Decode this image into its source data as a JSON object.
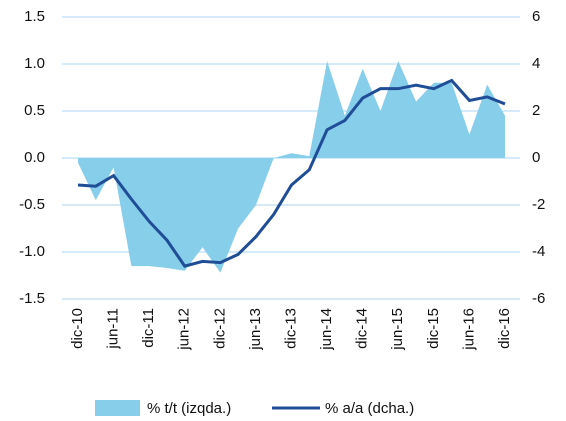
{
  "chart_data": {
    "type": "area-line",
    "categories": [
      "dic-10",
      null,
      "jun-11",
      null,
      "dic-11",
      null,
      "jun-12",
      null,
      "dic-12",
      null,
      "jun-13",
      null,
      "dic-13",
      null,
      "jun-14",
      null,
      "dic-14",
      null,
      "jun-15",
      null,
      "dic-15",
      null,
      "jun-16",
      null,
      "dic-16"
    ],
    "series": [
      {
        "name": "% t/t (izqda.)",
        "color": "#87ceeb",
        "axis": "y",
        "values": [
          -0.05,
          -0.45,
          -0.1,
          -1.15,
          -1.15,
          -1.17,
          -1.2,
          -0.95,
          -1.22,
          -0.75,
          -0.5,
          0.0,
          0.05,
          0.02,
          1.03,
          0.45,
          0.95,
          0.5,
          1.03,
          0.6,
          0.8,
          0.8,
          0.25,
          0.78,
          0.45
        ]
      },
      {
        "name": "% a/a (dcha.)",
        "color": "#1f4e96",
        "axis": "y2",
        "values": [
          -1.15,
          -1.2,
          -0.75,
          -1.75,
          -2.7,
          -3.5,
          -4.6,
          -4.4,
          -4.45,
          -4.1,
          -3.35,
          -2.4,
          -1.15,
          -0.5,
          1.2,
          1.6,
          2.55,
          2.95,
          2.95,
          3.1,
          2.95,
          3.3,
          2.45,
          2.6,
          2.3
        ]
      }
    ],
    "ylim": [
      -1.5,
      1.5
    ],
    "yticks": [
      1.5,
      {
        "value": 1,
        "label": "1.0"
      },
      0.5,
      {
        "value": 0,
        "label": "0.0"
      },
      -0.5,
      {
        "value": -1,
        "label": "-1.0"
      },
      -1.5
    ],
    "y2lim": [
      -6,
      6
    ],
    "y2ticks": [
      6,
      4,
      2,
      0,
      -2,
      -4,
      -6
    ],
    "grid": true
  }
}
